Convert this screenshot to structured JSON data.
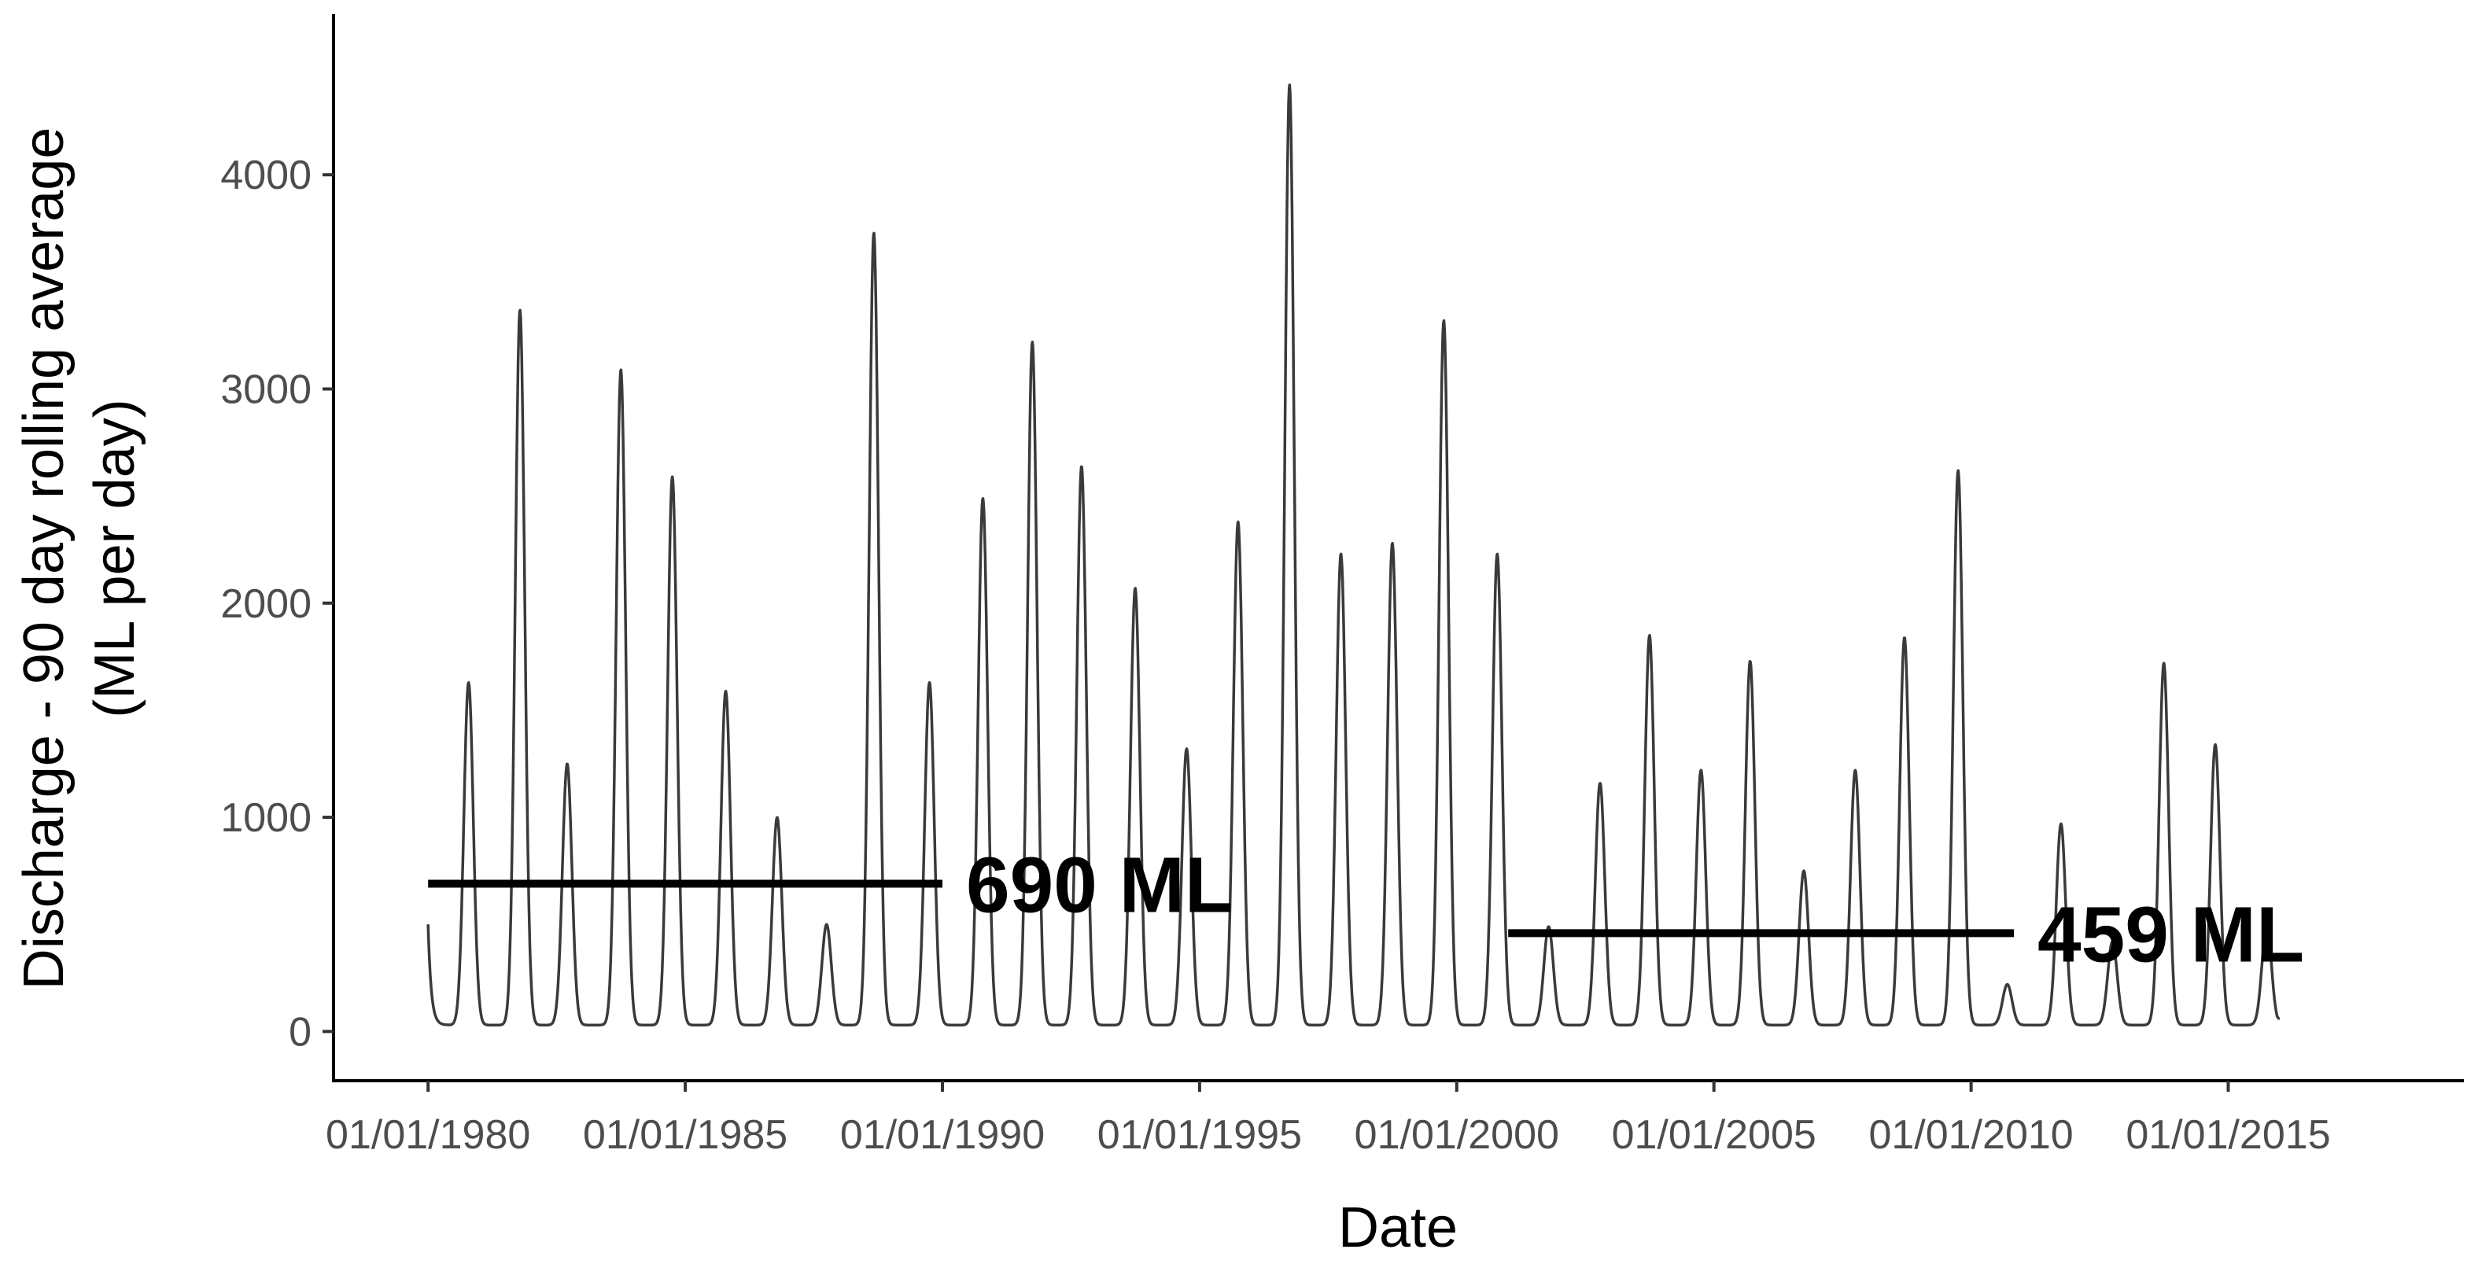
{
  "chart_data": {
    "type": "line",
    "title": "",
    "xlabel": "Date",
    "ylabel_line1": "Discharge - 90 day rolling average",
    "ylabel_line2": "(ML per day)",
    "x_tick_labels": [
      "01/01/1980",
      "01/01/1985",
      "01/01/1990",
      "01/01/1995",
      "01/01/2000",
      "01/01/2005",
      "01/01/2010",
      "01/01/2015"
    ],
    "y_tick_labels": [
      "0",
      "1000",
      "2000",
      "3000",
      "4000"
    ],
    "y_ticks": [
      0,
      1000,
      2000,
      3000,
      4000
    ],
    "xlim": [
      "1978-03-01",
      "2019-08-01"
    ],
    "ylim": [
      -230,
      4750
    ],
    "grid": false,
    "legend": "none",
    "line_color": "#3a3a3a",
    "series": [
      {
        "baseline": 30,
        "x_start": "1980-01-01",
        "x_end": "2016-01-01",
        "start_value": 500,
        "end_value": 50,
        "annual_peaks": [
          {
            "date": "1980-10-15",
            "value": 1630
          },
          {
            "date": "1981-10-15",
            "value": 3370
          },
          {
            "date": "1982-09-15",
            "value": 1250
          },
          {
            "date": "1983-10-01",
            "value": 3090
          },
          {
            "date": "1984-10-01",
            "value": 2590
          },
          {
            "date": "1985-10-15",
            "value": 1590
          },
          {
            "date": "1986-10-15",
            "value": 1000
          },
          {
            "date": "1987-10-01",
            "value": 500
          },
          {
            "date": "1988-09-01",
            "value": 3730
          },
          {
            "date": "1989-10-01",
            "value": 1630
          },
          {
            "date": "1990-10-15",
            "value": 2490
          },
          {
            "date": "1991-10-01",
            "value": 3220
          },
          {
            "date": "1992-09-15",
            "value": 2640
          },
          {
            "date": "1993-10-01",
            "value": 2070
          },
          {
            "date": "1994-10-01",
            "value": 1320
          },
          {
            "date": "1995-10-01",
            "value": 2380
          },
          {
            "date": "1996-10-01",
            "value": 4420
          },
          {
            "date": "1997-10-01",
            "value": 2230
          },
          {
            "date": "1998-10-01",
            "value": 2280
          },
          {
            "date": "1999-10-01",
            "value": 3320
          },
          {
            "date": "2000-10-15",
            "value": 2230
          },
          {
            "date": "2001-10-15",
            "value": 490
          },
          {
            "date": "2002-10-15",
            "value": 1160
          },
          {
            "date": "2003-10-01",
            "value": 1850
          },
          {
            "date": "2004-10-01",
            "value": 1220
          },
          {
            "date": "2005-09-15",
            "value": 1730
          },
          {
            "date": "2006-10-01",
            "value": 750
          },
          {
            "date": "2007-10-01",
            "value": 1220
          },
          {
            "date": "2008-09-15",
            "value": 1840
          },
          {
            "date": "2009-10-01",
            "value": 2620
          },
          {
            "date": "2010-09-15",
            "value": 220
          },
          {
            "date": "2011-10-01",
            "value": 970
          },
          {
            "date": "2012-10-01",
            "value": 420
          },
          {
            "date": "2013-10-01",
            "value": 1720
          },
          {
            "date": "2014-10-01",
            "value": 1340
          },
          {
            "date": "2015-10-01",
            "value": 500
          }
        ]
      }
    ],
    "annotations": [
      {
        "label": "690 ML",
        "value": 690,
        "x_start": "1980-01-01",
        "x_end": "1990-01-01"
      },
      {
        "label": "459 ML",
        "value": 459,
        "x_start": "2001-01-01",
        "x_end": "2010-11-01"
      }
    ]
  }
}
